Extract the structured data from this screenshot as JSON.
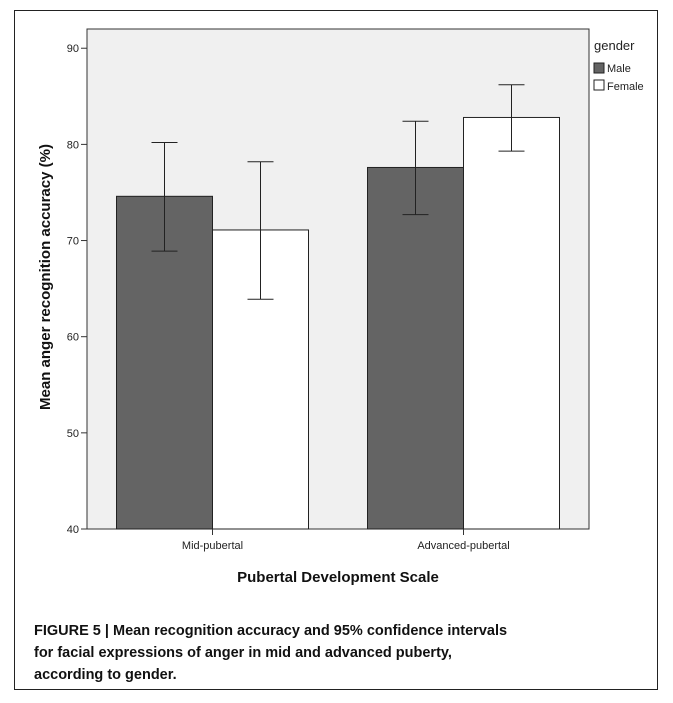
{
  "chart_data": {
    "type": "bar",
    "categories": [
      "Mid-pubertal",
      "Advanced-pubertal"
    ],
    "series": [
      {
        "name": "Male",
        "values": [
          74.6,
          77.6
        ],
        "ci_low": [
          68.9,
          72.7
        ],
        "ci_high": [
          80.2,
          82.4
        ],
        "color": "#646464"
      },
      {
        "name": "Female",
        "values": [
          71.1,
          82.8
        ],
        "ci_low": [
          63.9,
          79.3
        ],
        "ci_high": [
          78.2,
          86.2
        ],
        "color": "#ffffff"
      }
    ],
    "xlabel": "Pubertal Development Scale",
    "ylabel": "Mean anger recognition accuracy (%)",
    "ylim": [
      40,
      92
    ],
    "yticks": [
      40,
      50,
      60,
      70,
      80,
      90
    ],
    "legend_title": "gender",
    "legend_position": "top-right",
    "plot_background": "#f0f0f0",
    "grid": false
  },
  "caption": {
    "line1": "FIGURE 5 | Mean recognition accuracy and 95% confidence intervals",
    "line2": "for facial expressions of anger in mid and advanced puberty,",
    "line3": "according to gender."
  }
}
